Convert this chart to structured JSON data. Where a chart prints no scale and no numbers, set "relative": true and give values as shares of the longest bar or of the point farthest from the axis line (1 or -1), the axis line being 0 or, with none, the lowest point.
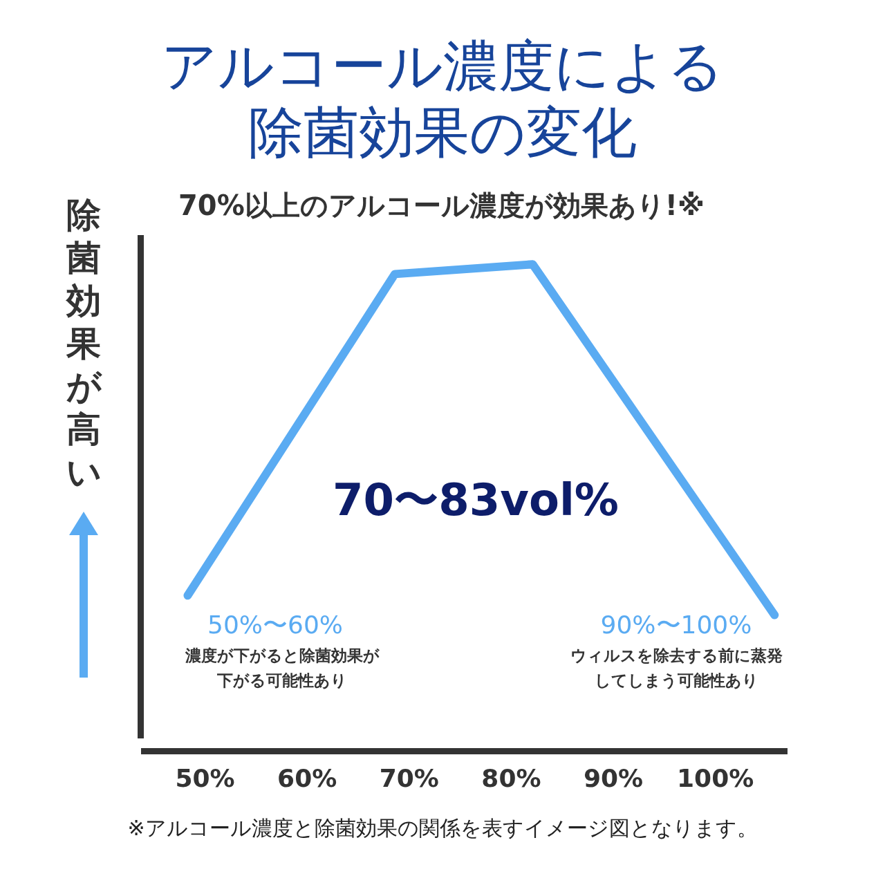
{
  "chart_data": {
    "type": "line",
    "title": "アルコール濃度による除菌効果の変化",
    "subtitle": "70%以上のアルコール濃度が効果あり!※",
    "ylabel": "除菌効果が高い",
    "x": [
      48.3,
      68.6,
      82.1,
      105.8
    ],
    "series": [
      {
        "color": "#5aabf2",
        "values": [
          0.32,
          0.98,
          1,
          0.28
        ]
      }
    ],
    "relative": true,
    "xlim": [
      44,
      107
    ],
    "xticks": [
      {
        "value": 50,
        "label": "50%"
      },
      {
        "value": 60,
        "label": "60%"
      },
      {
        "value": 70,
        "label": "70%"
      },
      {
        "value": 80,
        "label": "80%"
      },
      {
        "value": 90,
        "label": "90%"
      },
      {
        "value": 100,
        "label": "100%"
      }
    ],
    "grid": false,
    "legend": false,
    "marker": "none",
    "line_style": "solid",
    "annotations": [
      "70〜83vol%",
      "50%〜60%",
      "濃度が下がると除菌効果が下がる可能性あり",
      "90%〜100%",
      "ウィルスを除去する前に蒸発してしまう可能性あり",
      "※アルコール濃度と除菌効果の関係を表すイメージ図となります。"
    ]
  }
}
